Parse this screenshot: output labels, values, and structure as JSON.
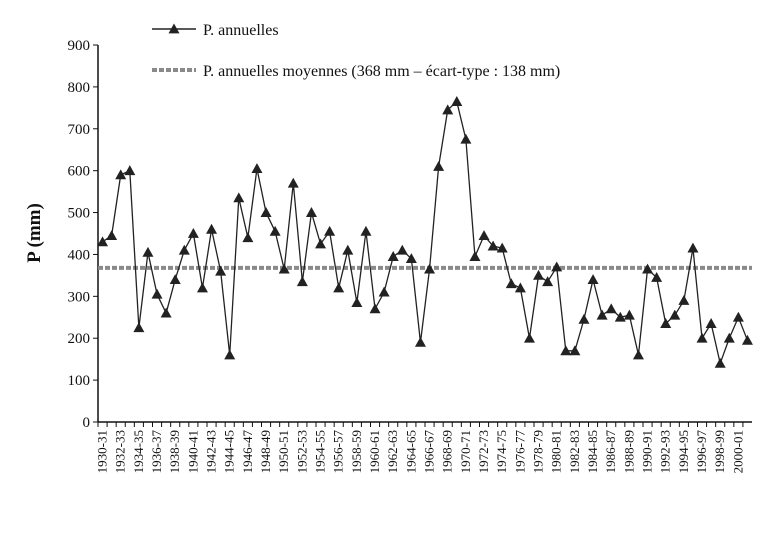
{
  "chart_data": {
    "type": "line",
    "y_label": "P (mm)",
    "categories": [
      "1930-31",
      null,
      "1932-33",
      null,
      "1934-35",
      null,
      "1936-37",
      null,
      "1938-39",
      null,
      "1940-41",
      null,
      "1942-43",
      null,
      "1944-45",
      null,
      "1946-47",
      null,
      "1948-49",
      null,
      "1950-51",
      null,
      "1952-53",
      null,
      "1954-55",
      null,
      "1956-57",
      null,
      "1958-59",
      null,
      "1960-61",
      null,
      "1962-63",
      null,
      "1964-65",
      null,
      "1966-67",
      null,
      "1968-69",
      null,
      "1970-71",
      null,
      "1972-73",
      null,
      "1974-75",
      null,
      "1976-77",
      null,
      "1978-79",
      null,
      "1980-81",
      null,
      "1982-83",
      null,
      "1984-85",
      null,
      "1986-87",
      null,
      "1988-89",
      null,
      "1990-91",
      null,
      "1992-93",
      null,
      "1994-95",
      null,
      "1996-97",
      null,
      "1998-99",
      null,
      "2000-01",
      null
    ],
    "series": [
      {
        "name": "P. annuelles",
        "color": "#222222",
        "values": [
          430,
          445,
          590,
          600,
          225,
          405,
          305,
          260,
          340,
          410,
          450,
          320,
          460,
          360,
          160,
          535,
          440,
          605,
          500,
          455,
          365,
          570,
          335,
          500,
          425,
          455,
          320,
          410,
          285,
          455,
          270,
          310,
          395,
          410,
          390,
          190,
          365,
          610,
          745,
          765,
          675,
          395,
          445,
          420,
          415,
          330,
          320,
          200,
          350,
          335,
          370,
          170,
          170,
          245,
          340,
          255,
          270,
          250,
          255,
          160,
          365,
          345,
          235,
          255,
          290,
          415,
          200,
          235,
          140,
          200,
          250,
          195
        ]
      }
    ],
    "mean_line": {
      "name": "P. annuelles moyennes (368 mm – écart-type : 138 mm)",
      "value": 368,
      "color": "#8a8a8a"
    },
    "ylim": [
      0,
      900
    ],
    "yticks": [
      0,
      100,
      200,
      300,
      400,
      500,
      600,
      700,
      800,
      900
    ],
    "grid": false
  }
}
